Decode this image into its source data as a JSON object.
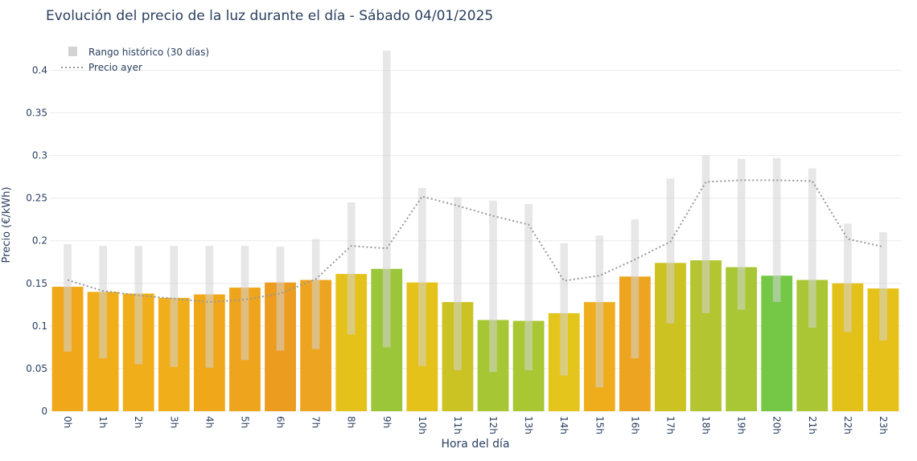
{
  "chart_data": {
    "type": "bar",
    "title": "Evolución del precio de la luz durante el día - Sábado 04/01/2025",
    "xlabel": "Hora del día",
    "ylabel": "Precio (€/kWh)",
    "ylim": [
      0,
      0.44
    ],
    "yticks": [
      0,
      0.05,
      0.1,
      0.15,
      0.2,
      0.25,
      0.3,
      0.35,
      0.4
    ],
    "ytick_labels": [
      "0",
      "0.05",
      "0.1",
      "0.15",
      "0.2",
      "0.25",
      "0.3",
      "0.35",
      "0.4"
    ],
    "grid": true,
    "legend_position": "top-left",
    "categories": [
      "0h",
      "1h",
      "2h",
      "3h",
      "4h",
      "5h",
      "6h",
      "7h",
      "8h",
      "9h",
      "10h",
      "11h",
      "12h",
      "13h",
      "14h",
      "15h",
      "16h",
      "17h",
      "18h",
      "19h",
      "20h",
      "21h",
      "22h",
      "23h"
    ],
    "series": [
      {
        "type": "bar",
        "values": [
          0.146,
          0.14,
          0.138,
          0.133,
          0.137,
          0.145,
          0.151,
          0.154,
          0.161,
          0.167,
          0.151,
          0.128,
          0.107,
          0.106,
          0.115,
          0.128,
          0.158,
          0.174,
          0.177,
          0.169,
          0.159,
          0.154,
          0.15,
          0.144
        ],
        "colors": [
          "#f0a81a",
          "#f0ae1a",
          "#f0ae1a",
          "#f0ae1a",
          "#f0a81a",
          "#eea41c",
          "#ec9c1e",
          "#eda420",
          "#e5c219",
          "#9bc63a",
          "#e5c219",
          "#cbc223",
          "#a7c634",
          "#a8c733",
          "#e4c51c",
          "#efad1c",
          "#eda421",
          "#ccc222",
          "#b3c530",
          "#a9c735",
          "#74c846",
          "#abc634",
          "#e2c11b",
          "#e5c119"
        ]
      },
      {
        "name": "Rango histórico (30 días)",
        "type": "range",
        "color": "#d3d3d3",
        "low": [
          0.07,
          0.062,
          0.055,
          0.052,
          0.051,
          0.06,
          0.071,
          0.073,
          0.09,
          0.075,
          0.053,
          0.048,
          0.046,
          0.048,
          0.042,
          0.028,
          0.062,
          0.103,
          0.115,
          0.119,
          0.128,
          0.098,
          0.093,
          0.083
        ],
        "high": [
          0.196,
          0.194,
          0.194,
          0.194,
          0.194,
          0.194,
          0.193,
          0.202,
          0.245,
          0.423,
          0.262,
          0.251,
          0.247,
          0.243,
          0.197,
          0.206,
          0.225,
          0.273,
          0.3,
          0.296,
          0.297,
          0.285,
          0.22,
          0.21
        ]
      },
      {
        "name": "Precio ayer",
        "type": "line",
        "style": "dotted",
        "color": "#999999",
        "values": [
          0.154,
          0.141,
          0.136,
          0.132,
          0.128,
          0.131,
          0.138,
          0.155,
          0.194,
          0.191,
          0.252,
          0.241,
          0.229,
          0.219,
          0.153,
          0.159,
          0.178,
          0.199,
          0.269,
          0.271,
          0.271,
          0.27,
          0.202,
          0.193
        ]
      }
    ]
  }
}
